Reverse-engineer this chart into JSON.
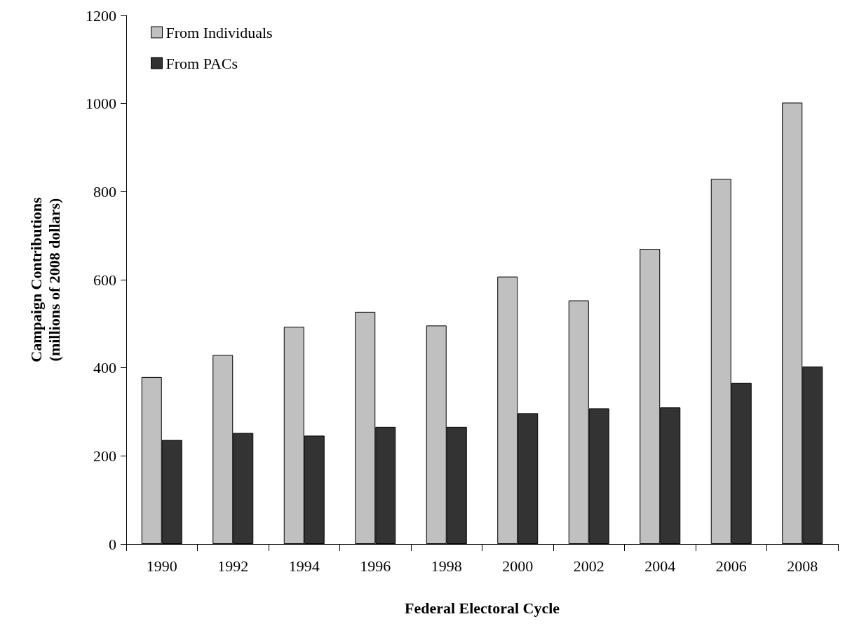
{
  "chart_data": {
    "type": "bar",
    "xlabel": "Federal Electoral Cycle",
    "ylabel": "Campaign Contributions\n(millions of 2008 dollars)",
    "categories": [
      "1990",
      "1992",
      "1994",
      "1996",
      "1998",
      "2000",
      "2002",
      "2004",
      "2006",
      "2008"
    ],
    "series": [
      {
        "name": "From Individuals",
        "color": "#c0c0c0",
        "values": [
          379,
          429,
          493,
          527,
          496,
          607,
          553,
          670,
          829,
          1002
        ]
      },
      {
        "name": "From PACs",
        "color": "#333333",
        "values": [
          236,
          252,
          246,
          266,
          266,
          297,
          308,
          310,
          366,
          403
        ]
      }
    ],
    "ylim": [
      0,
      1200
    ],
    "yticks": [
      0,
      200,
      400,
      600,
      800,
      1000,
      1200
    ],
    "grid": false,
    "legend": "top left"
  }
}
